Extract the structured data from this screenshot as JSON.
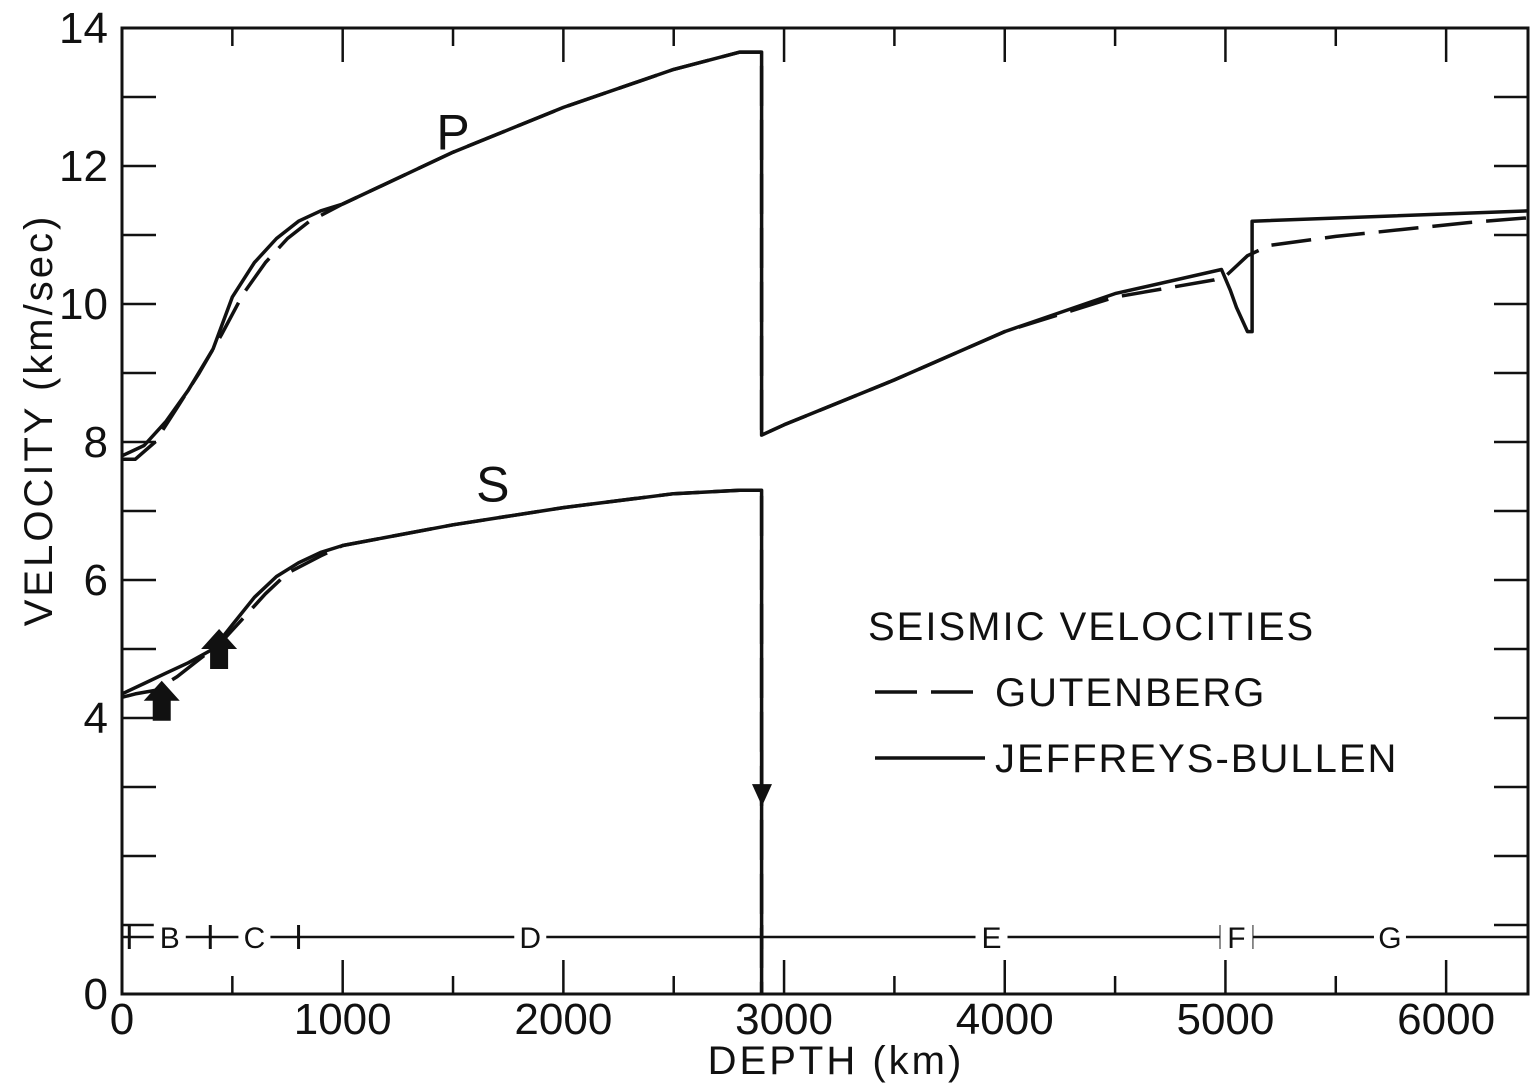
{
  "chart_data": {
    "type": "line",
    "title": "",
    "xlabel": "DEPTH (km)",
    "ylabel": "VELOCITY (km/sec)",
    "xlim": [
      0,
      6371
    ],
    "ylim": [
      0,
      14
    ],
    "grid": false,
    "x_ticks": [
      "0",
      "1000",
      "2000",
      "3000",
      "4000",
      "5000",
      "6000"
    ],
    "y_ticks": [
      "0",
      "4",
      "6",
      "8",
      "10",
      "12",
      "14"
    ],
    "legend": {
      "title": "SEISMIC VELOCITIES",
      "placement": "right",
      "entries": [
        {
          "label": "GUTENBERG",
          "style": "dashed"
        },
        {
          "label": "JEFFREYS-BULLEN",
          "style": "solid"
        }
      ]
    },
    "curve_labels": [
      {
        "text": "P",
        "x": 1500,
        "y": 12.5
      },
      {
        "text": "S",
        "x": 1680,
        "y": 7.4
      }
    ],
    "zones": [
      {
        "label": "B",
        "from": 33,
        "to": 400
      },
      {
        "label": "C",
        "from": 400,
        "to": 800
      },
      {
        "label": "D",
        "from": 800,
        "to": 2900
      },
      {
        "label": "E",
        "from": 2900,
        "to": 4980
      },
      {
        "label": "F",
        "from": 4980,
        "to": 5120
      },
      {
        "label": "G",
        "from": 5120,
        "to": 6371
      }
    ],
    "markers": [
      {
        "type": "arrow-up",
        "x": 180,
        "y": 4.25
      },
      {
        "type": "arrow-up",
        "x": 440,
        "y": 5.0
      },
      {
        "type": "arrow-down",
        "x": 2900,
        "y": 3.1
      }
    ],
    "series": [
      {
        "name": "P JEFFREYS-BULLEN",
        "style": "solid",
        "x": [
          0,
          33,
          100,
          200,
          300,
          413,
          500,
          600,
          700,
          800,
          900,
          1000,
          1500,
          2000,
          2500,
          2800,
          2898,
          2898,
          3000,
          3500,
          4000,
          4500,
          4982,
          5022,
          5050,
          5100,
          5121,
          5121,
          6371
        ],
        "y": [
          7.8,
          7.85,
          7.95,
          8.3,
          8.75,
          9.35,
          10.1,
          10.6,
          10.95,
          11.2,
          11.35,
          11.45,
          12.2,
          12.85,
          13.4,
          13.65,
          13.65,
          8.1,
          8.25,
          8.9,
          9.6,
          10.15,
          10.5,
          10.2,
          9.95,
          9.6,
          9.6,
          11.2,
          11.35
        ]
      },
      {
        "name": "P GUTENBERG",
        "style": "dashed",
        "x": [
          0,
          60,
          150,
          250,
          350,
          450,
          550,
          650,
          750,
          850,
          1000,
          1500,
          2000,
          2500,
          2800,
          2898,
          2898,
          3000,
          3500,
          4000,
          4500,
          4950,
          5000,
          5050,
          5100,
          5200,
          5500,
          5800,
          6100,
          6371
        ],
        "y": [
          7.75,
          7.75,
          8.0,
          8.5,
          9.0,
          9.55,
          10.15,
          10.6,
          10.95,
          11.2,
          11.45,
          12.2,
          12.85,
          13.4,
          13.65,
          13.65,
          8.1,
          8.25,
          8.9,
          9.6,
          10.1,
          10.35,
          10.4,
          10.55,
          10.7,
          10.85,
          10.98,
          11.08,
          11.18,
          11.25
        ]
      },
      {
        "name": "S JEFFREYS-BULLEN",
        "style": "solid",
        "x": [
          0,
          33,
          100,
          200,
          300,
          413,
          500,
          600,
          700,
          800,
          900,
          1000,
          1500,
          2000,
          2500,
          2800,
          2898,
          2898
        ],
        "y": [
          4.35,
          4.4,
          4.5,
          4.65,
          4.8,
          5.0,
          5.35,
          5.75,
          6.05,
          6.25,
          6.4,
          6.5,
          6.8,
          7.05,
          7.25,
          7.3,
          7.3,
          0
        ]
      },
      {
        "name": "S GUTENBERG",
        "style": "dashed",
        "x": [
          0,
          60,
          150,
          250,
          350,
          450,
          550,
          650,
          750,
          900,
          1000,
          1500,
          2000,
          2500,
          2800,
          2898,
          2898
        ],
        "y": [
          4.3,
          4.35,
          4.4,
          4.6,
          4.85,
          5.1,
          5.45,
          5.8,
          6.1,
          6.35,
          6.5,
          6.8,
          7.05,
          7.25,
          7.3,
          7.3,
          0
        ]
      }
    ]
  }
}
